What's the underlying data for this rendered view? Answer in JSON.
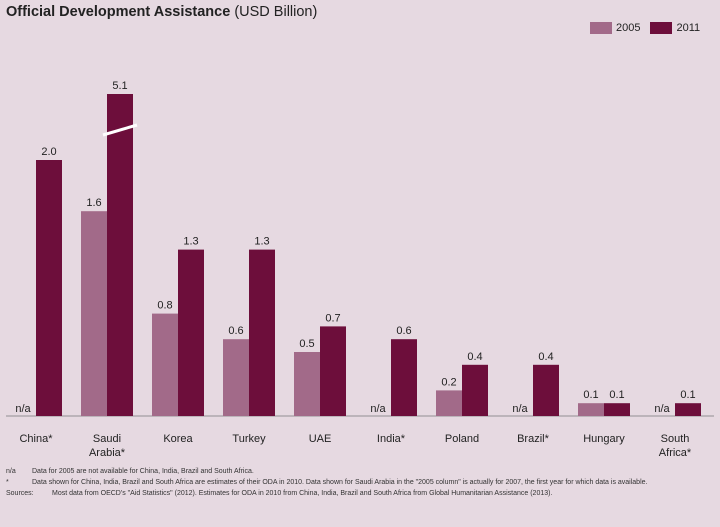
{
  "title": {
    "main": "Official Development Assistance",
    "unit": "(USD Billion)"
  },
  "colors": {
    "background": "#e6d9e1",
    "series_2005": "#a26a89",
    "series_2011": "#6d0e3b"
  },
  "chart_data": {
    "type": "bar",
    "title": "Official Development Assistance (USD Billion)",
    "categories": [
      "China*",
      "Saudi Arabia*",
      "Korea",
      "Turkey",
      "UAE",
      "India*",
      "Poland",
      "Brazil*",
      "Hungary",
      "South Africa*"
    ],
    "series": [
      {
        "name": "2005",
        "values": [
          null,
          1.6,
          0.8,
          0.6,
          0.5,
          null,
          0.2,
          null,
          0.1,
          null
        ],
        "labels": [
          "n/a",
          "1.6",
          "0.8",
          "0.6",
          "0.5",
          "n/a",
          "0.2",
          "n/a",
          "0.1",
          "n/a"
        ]
      },
      {
        "name": "2011",
        "values": [
          2.0,
          5.1,
          1.3,
          1.3,
          0.7,
          0.6,
          0.4,
          0.4,
          0.1,
          0.1
        ],
        "labels": [
          "2.0",
          "5.1",
          "1.3",
          "1.3",
          "0.7",
          "0.6",
          "0.4",
          "0.4",
          "0.1",
          "0.1"
        ]
      }
    ],
    "axis_break": {
      "category": "Saudi Arabia*",
      "series": "2011"
    },
    "legend_position": "top-right",
    "grid": false
  },
  "notes": [
    {
      "key": "n/a",
      "text": "Data for 2005 are not available for China, India, Brazil and South Africa."
    },
    {
      "key": "*",
      "text": "Data shown for China, India, Brazil and South Africa are estimates of their ODA in 2010. Data shown for Saudi Arabia in the \"2005 column\" is actually for 2007, the first year for which data is available."
    },
    {
      "key": "Sources:",
      "text": "Most data from OECD's \"Aid Statistics\" (2012). Estimates for ODA in 2010 from China, India, Brazil and South Africa from Global Humanitarian Assistance (2013)."
    }
  ]
}
